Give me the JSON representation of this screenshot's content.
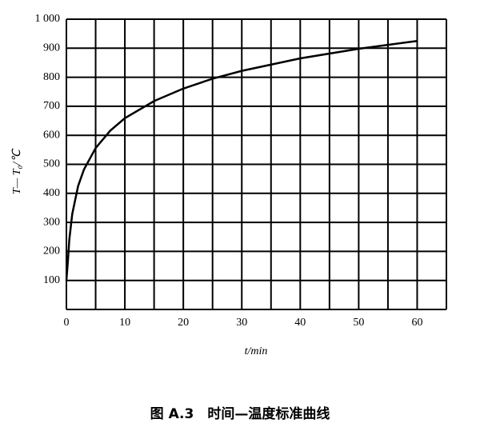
{
  "chart_data": {
    "type": "line",
    "caption": "图 A.3　时间—温度标准曲线",
    "x_label": "t/min",
    "y_label": "T— T₀/℃",
    "x": [
      0,
      0.25,
      0.5,
      1,
      2,
      3,
      5,
      7.5,
      10,
      15,
      20,
      25,
      30,
      40,
      50,
      60
    ],
    "series": [
      {
        "name": "T— T₀",
        "color": "#000000",
        "values": [
          100,
          165,
          241,
          329,
          425,
          482,
          556,
          616,
          659,
          718,
          761,
          795,
          822,
          865,
          898,
          925
        ]
      }
    ],
    "xlim": [
      0,
      65
    ],
    "ylim": [
      0,
      1000
    ],
    "xticks": [
      0,
      10,
      20,
      30,
      40,
      50,
      60
    ],
    "yticks": [
      100,
      200,
      300,
      400,
      500,
      600,
      700,
      800,
      900,
      {
        "value": 1000,
        "label": "1 000"
      }
    ],
    "x_grid": [
      0,
      5,
      10,
      15,
      20,
      25,
      30,
      35,
      40,
      45,
      50,
      55,
      60,
      65
    ],
    "y_grid": [
      0,
      100,
      200,
      300,
      400,
      500,
      600,
      700,
      800,
      900,
      1000
    ],
    "grid": true
  }
}
